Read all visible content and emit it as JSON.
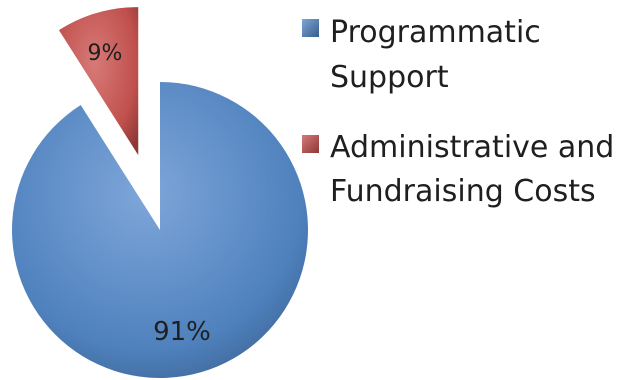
{
  "chart_data": {
    "type": "pie",
    "categories": [
      "Programmatic Support",
      "Administrative and Fundraising Costs"
    ],
    "values": [
      91,
      9
    ],
    "data_labels": [
      "91%",
      "9%"
    ],
    "legend_lines": [
      [
        "Programmatic",
        "Support"
      ],
      [
        "Administrative and",
        "Fundraising Costs"
      ]
    ],
    "exploded_slice": "Administrative and Fundraising Costs",
    "legend_position": "right"
  },
  "colors": {
    "programmatic": "#4F81BD",
    "programmatic_light": "#7EA6DA",
    "programmatic_dark": "#385D8A",
    "administrative": "#C0504D",
    "administrative_light": "#D77A77",
    "administrative_dark": "#8C3836",
    "label_text": "#1F1F1F"
  }
}
